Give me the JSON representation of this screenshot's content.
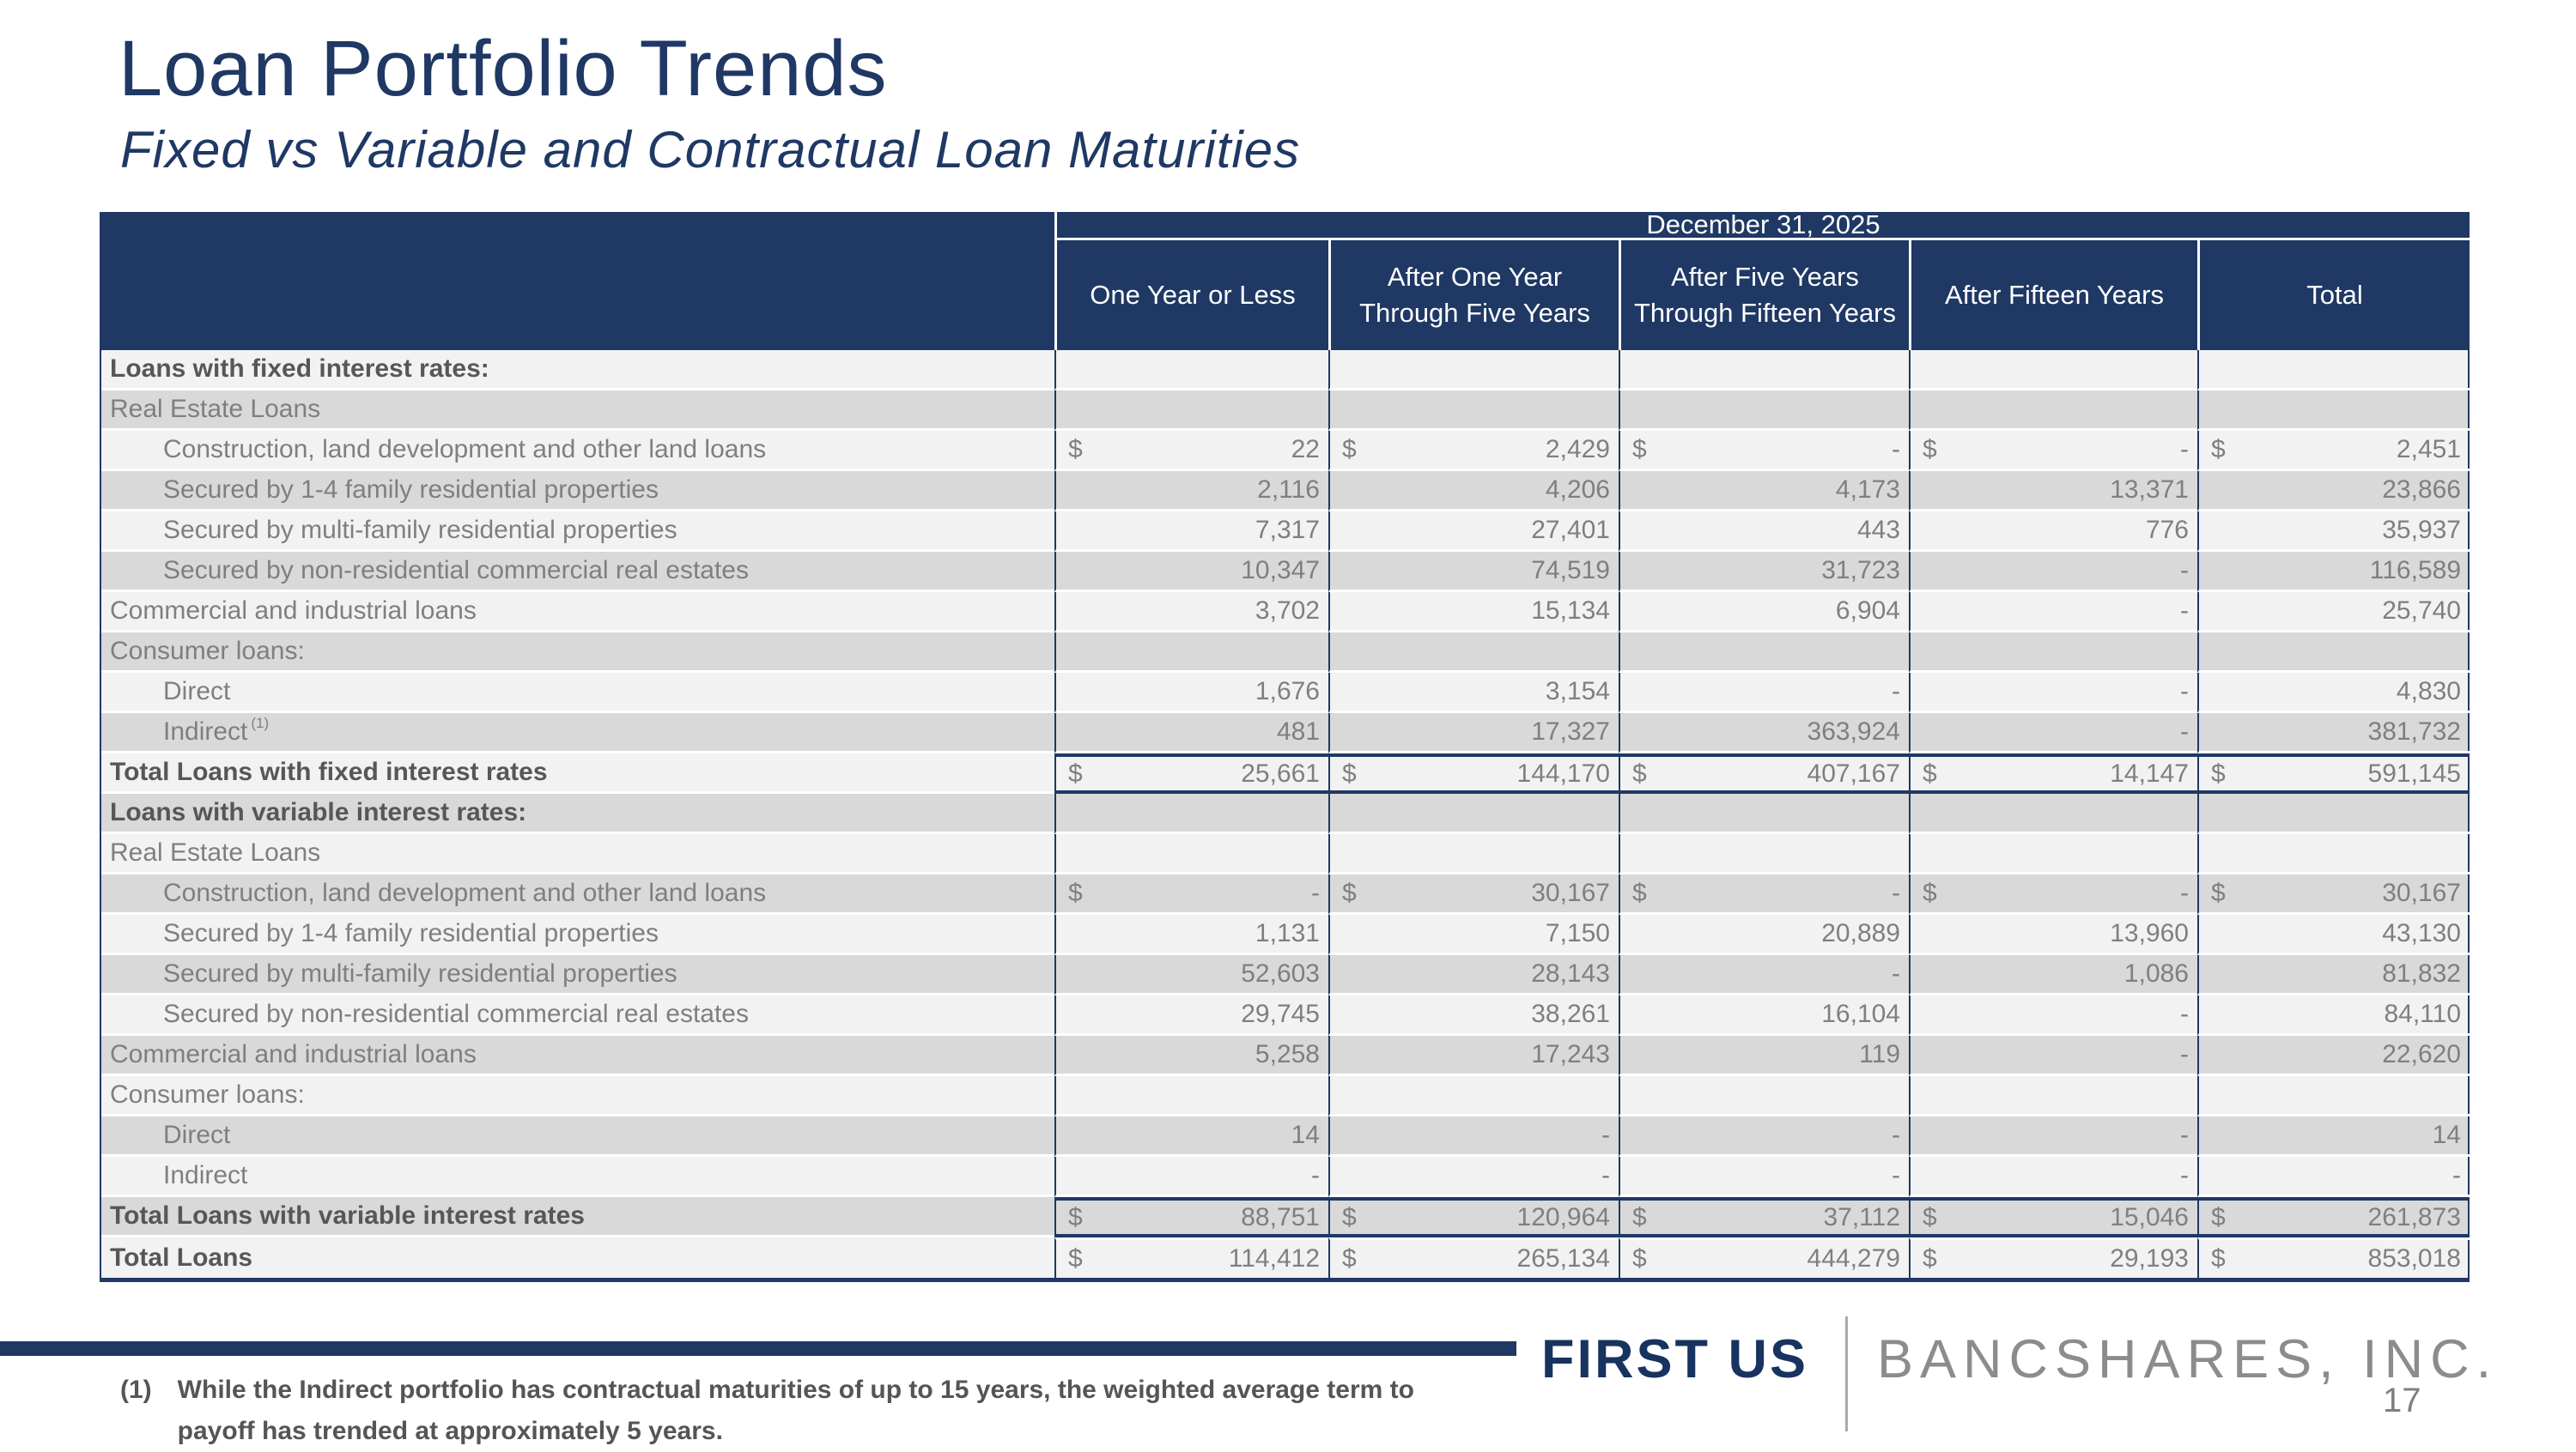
{
  "page": {
    "title": "Loan Portfolio Trends",
    "subtitle": "Fixed vs Variable and Contractual Loan Maturities",
    "page_number": "17"
  },
  "colors": {
    "navy": "#1F3864",
    "row_light": "#F2F2F2",
    "row_dark": "#D9D9D9",
    "body_text_gray": "#7F7F7F",
    "bold_text_gray": "#575757",
    "logo_gray": "#8C8C8C"
  },
  "table": {
    "date_header": "December 31, 2025",
    "columns": [
      "One Year or Less",
      "After One Year Through Five Years",
      "After Five Years Through Fifteen Years",
      "After Fifteen Years",
      "Total"
    ],
    "rows": [
      {
        "label": "Loans with fixed interest rates:",
        "type": "section",
        "indent": 0,
        "dollar": false,
        "values": [
          "",
          "",
          "",
          "",
          ""
        ]
      },
      {
        "label": "Real Estate Loans",
        "type": "group",
        "indent": 0,
        "dollar": false,
        "values": [
          "",
          "",
          "",
          "",
          ""
        ]
      },
      {
        "label": "Construction, land development and other land loans",
        "type": "item",
        "indent": 1,
        "dollar": true,
        "values": [
          "22",
          "2,429",
          "-",
          "-",
          "2,451"
        ]
      },
      {
        "label": "Secured by 1-4 family residential properties",
        "type": "item",
        "indent": 1,
        "dollar": false,
        "values": [
          "2,116",
          "4,206",
          "4,173",
          "13,371",
          "23,866"
        ]
      },
      {
        "label": "Secured by multi-family residential properties",
        "type": "item",
        "indent": 1,
        "dollar": false,
        "values": [
          "7,317",
          "27,401",
          "443",
          "776",
          "35,937"
        ]
      },
      {
        "label": "Secured by non-residential commercial real estates",
        "type": "item",
        "indent": 1,
        "dollar": false,
        "values": [
          "10,347",
          "74,519",
          "31,723",
          "-",
          "116,589"
        ]
      },
      {
        "label": "Commercial and industrial loans",
        "type": "item",
        "indent": 0,
        "dollar": false,
        "values": [
          "3,702",
          "15,134",
          "6,904",
          "-",
          "25,740"
        ]
      },
      {
        "label": "Consumer loans:",
        "type": "group",
        "indent": 0,
        "dollar": false,
        "values": [
          "",
          "",
          "",
          "",
          ""
        ]
      },
      {
        "label": "Direct",
        "type": "item",
        "indent": 1,
        "dollar": false,
        "values": [
          "1,676",
          "3,154",
          "-",
          "-",
          "4,830"
        ]
      },
      {
        "label": "Indirect",
        "sup": "(1)",
        "type": "item",
        "indent": 1,
        "dollar": false,
        "values": [
          "481",
          "17,327",
          "363,924",
          "-",
          "381,732"
        ]
      },
      {
        "label": "Total Loans with fixed interest rates",
        "type": "total",
        "indent": 0,
        "dollar": true,
        "values": [
          "25,661",
          "144,170",
          "407,167",
          "14,147",
          "591,145"
        ]
      },
      {
        "label": "Loans with variable interest rates:",
        "type": "section",
        "indent": 0,
        "dollar": false,
        "values": [
          "",
          "",
          "",
          "",
          ""
        ]
      },
      {
        "label": "Real Estate Loans",
        "type": "group",
        "indent": 0,
        "dollar": false,
        "values": [
          "",
          "",
          "",
          "",
          ""
        ]
      },
      {
        "label": "Construction, land development and other land loans",
        "type": "item",
        "indent": 1,
        "dollar": true,
        "values": [
          "-",
          "30,167",
          "-",
          "-",
          "30,167"
        ]
      },
      {
        "label": "Secured by 1-4 family residential properties",
        "type": "item",
        "indent": 1,
        "dollar": false,
        "values": [
          "1,131",
          "7,150",
          "20,889",
          "13,960",
          "43,130"
        ]
      },
      {
        "label": "Secured by multi-family residential properties",
        "type": "item",
        "indent": 1,
        "dollar": false,
        "values": [
          "52,603",
          "28,143",
          "-",
          "1,086",
          "81,832"
        ]
      },
      {
        "label": "Secured by non-residential commercial real estates",
        "type": "item",
        "indent": 1,
        "dollar": false,
        "values": [
          "29,745",
          "38,261",
          "16,104",
          "-",
          "84,110"
        ]
      },
      {
        "label": "Commercial and industrial loans",
        "type": "item",
        "indent": 0,
        "dollar": false,
        "values": [
          "5,258",
          "17,243",
          "119",
          "-",
          "22,620"
        ]
      },
      {
        "label": "Consumer loans:",
        "type": "group",
        "indent": 0,
        "dollar": false,
        "values": [
          "",
          "",
          "",
          "",
          ""
        ]
      },
      {
        "label": "Direct",
        "type": "item",
        "indent": 1,
        "dollar": false,
        "values": [
          "14",
          "-",
          "-",
          "-",
          "14"
        ]
      },
      {
        "label": "Indirect",
        "type": "item",
        "indent": 1,
        "dollar": false,
        "values": [
          "-",
          "-",
          "-",
          "-",
          "-"
        ]
      },
      {
        "label": "Total Loans with variable interest rates",
        "type": "total",
        "indent": 0,
        "dollar": true,
        "values": [
          "88,751",
          "120,964",
          "37,112",
          "15,046",
          "261,873"
        ]
      },
      {
        "label": "Total Loans",
        "type": "grand",
        "indent": 0,
        "dollar": true,
        "values": [
          "114,412",
          "265,134",
          "444,279",
          "29,193",
          "853,018"
        ]
      }
    ]
  },
  "footer": {
    "footnote_marker": "(1)",
    "footnote_text": "While the Indirect portfolio has contractual maturities of up to 15 years, the weighted average term to payoff has trended at approximately 5 years.",
    "logo_primary": "FIRST US",
    "logo_secondary": "BANCSHARES, INC."
  }
}
